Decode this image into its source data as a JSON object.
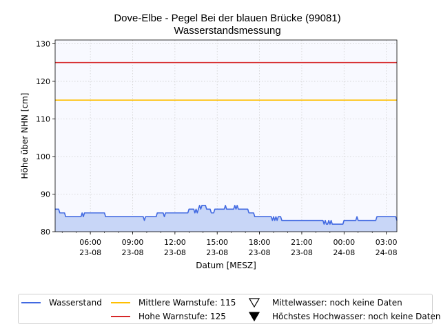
{
  "chart_data": {
    "type": "line",
    "title": "Dove-Elbe - Pegel Bei der blauen Brücke (99081)",
    "subtitle": "Wasserstandsmessung",
    "xlabel": "Datum [MESZ]",
    "ylabel": "Höhe über NHN [cm]",
    "ylim": [
      80,
      131
    ],
    "yticks": [
      80,
      90,
      100,
      110,
      120,
      130
    ],
    "xlim": [
      "2024-08-23 03:30",
      "2024-08-24 03:45"
    ],
    "xticks": [
      {
        "t": "2024-08-23 06:00",
        "time": "06:00",
        "date": "23-08"
      },
      {
        "t": "2024-08-23 09:00",
        "time": "09:00",
        "date": "23-08"
      },
      {
        "t": "2024-08-23 12:00",
        "time": "12:00",
        "date": "23-08"
      },
      {
        "t": "2024-08-23 15:00",
        "time": "15:00",
        "date": "23-08"
      },
      {
        "t": "2024-08-23 18:00",
        "time": "18:00",
        "date": "23-08"
      },
      {
        "t": "2024-08-23 21:00",
        "time": "21:00",
        "date": "23-08"
      },
      {
        "t": "2024-08-24 00:00",
        "time": "00:00",
        "date": "24-08"
      },
      {
        "t": "2024-08-24 03:00",
        "time": "03:00",
        "date": "24-08"
      }
    ],
    "grid": true,
    "legend_position": "bottom",
    "series": [
      {
        "name": "Wasserstand",
        "color": "#4169e1",
        "fill": "#c8d6f7",
        "points": [
          [
            "2024-08-23 03:30",
            86
          ],
          [
            "2024-08-23 03:45",
            86
          ],
          [
            "2024-08-23 03:50",
            85
          ],
          [
            "2024-08-23 04:10",
            85
          ],
          [
            "2024-08-23 04:15",
            84
          ],
          [
            "2024-08-23 05:20",
            84
          ],
          [
            "2024-08-23 05:25",
            85
          ],
          [
            "2024-08-23 05:30",
            84
          ],
          [
            "2024-08-23 05:35",
            85
          ],
          [
            "2024-08-23 07:00",
            85
          ],
          [
            "2024-08-23 07:05",
            84
          ],
          [
            "2024-08-23 09:45",
            84
          ],
          [
            "2024-08-23 09:50",
            83
          ],
          [
            "2024-08-23 09:55",
            84
          ],
          [
            "2024-08-23 10:40",
            84
          ],
          [
            "2024-08-23 10:45",
            85
          ],
          [
            "2024-08-23 11:10",
            85
          ],
          [
            "2024-08-23 11:15",
            84
          ],
          [
            "2024-08-23 11:20",
            85
          ],
          [
            "2024-08-23 12:55",
            85
          ],
          [
            "2024-08-23 13:00",
            86
          ],
          [
            "2024-08-23 13:20",
            86
          ],
          [
            "2024-08-23 13:25",
            85
          ],
          [
            "2024-08-23 13:30",
            86
          ],
          [
            "2024-08-23 13:35",
            85
          ],
          [
            "2024-08-23 13:40",
            86
          ],
          [
            "2024-08-23 13:45",
            87
          ],
          [
            "2024-08-23 13:50",
            86
          ],
          [
            "2024-08-23 13:55",
            87
          ],
          [
            "2024-08-23 14:10",
            87
          ],
          [
            "2024-08-23 14:15",
            86
          ],
          [
            "2024-08-23 14:30",
            86
          ],
          [
            "2024-08-23 14:35",
            85
          ],
          [
            "2024-08-23 14:45",
            85
          ],
          [
            "2024-08-23 14:50",
            86
          ],
          [
            "2024-08-23 15:30",
            86
          ],
          [
            "2024-08-23 15:35",
            87
          ],
          [
            "2024-08-23 15:40",
            86
          ],
          [
            "2024-08-23 16:10",
            86
          ],
          [
            "2024-08-23 16:15",
            87
          ],
          [
            "2024-08-23 16:20",
            86
          ],
          [
            "2024-08-23 16:25",
            87
          ],
          [
            "2024-08-23 16:30",
            86
          ],
          [
            "2024-08-23 17:10",
            86
          ],
          [
            "2024-08-23 17:15",
            85
          ],
          [
            "2024-08-23 17:35",
            85
          ],
          [
            "2024-08-23 17:40",
            84
          ],
          [
            "2024-08-23 18:50",
            84
          ],
          [
            "2024-08-23 18:55",
            83
          ],
          [
            "2024-08-23 19:00",
            84
          ],
          [
            "2024-08-23 19:05",
            83
          ],
          [
            "2024-08-23 19:10",
            84
          ],
          [
            "2024-08-23 19:15",
            83
          ],
          [
            "2024-08-23 19:20",
            84
          ],
          [
            "2024-08-23 19:30",
            84
          ],
          [
            "2024-08-23 19:35",
            83
          ],
          [
            "2024-08-23 22:30",
            83
          ],
          [
            "2024-08-23 22:35",
            82
          ],
          [
            "2024-08-23 22:40",
            83
          ],
          [
            "2024-08-23 22:45",
            82
          ],
          [
            "2024-08-23 22:50",
            82
          ],
          [
            "2024-08-23 22:55",
            83
          ],
          [
            "2024-08-23 23:00",
            82
          ],
          [
            "2024-08-23 23:05",
            83
          ],
          [
            "2024-08-23 23:10",
            82
          ],
          [
            "2024-08-23 23:55",
            82
          ],
          [
            "2024-08-24 00:00",
            83
          ],
          [
            "2024-08-24 00:50",
            83
          ],
          [
            "2024-08-24 00:55",
            84
          ],
          [
            "2024-08-24 01:00",
            83
          ],
          [
            "2024-08-24 02:15",
            83
          ],
          [
            "2024-08-24 02:20",
            84
          ],
          [
            "2024-08-24 03:40",
            84
          ],
          [
            "2024-08-24 03:45",
            83
          ]
        ]
      }
    ],
    "thresholds": [
      {
        "name": "Mittlere Warnstufe: 115",
        "value": 115,
        "color": "#ffbf00"
      },
      {
        "name": "Hohe Warnstufe: 125",
        "value": 125,
        "color": "#d62728"
      }
    ],
    "markers": [
      {
        "name": "Mittelwasser: noch keine Daten",
        "icon": "triangle-down-outline-icon"
      },
      {
        "name": "Höchstes Hochwasser: noch keine Daten",
        "icon": "triangle-down-filled-icon"
      }
    ],
    "colors": {
      "plot_background": "#f8f9ff",
      "grid": "#d0d0d0"
    }
  }
}
